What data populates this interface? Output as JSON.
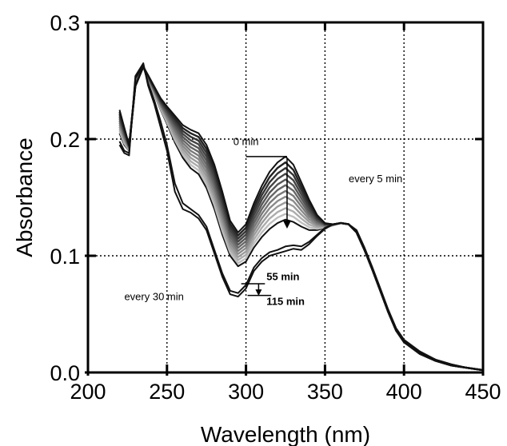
{
  "chart_data": {
    "type": "line",
    "title": "",
    "xlabel": "Wavelength (nm)",
    "ylabel": "Absorbance",
    "xlim": [
      200,
      450
    ],
    "ylim": [
      0.0,
      0.3
    ],
    "x_ticks": [
      200,
      250,
      300,
      350,
      400,
      450
    ],
    "y_ticks": [
      0.0,
      0.1,
      0.2,
      0.3
    ],
    "x_tick_labels": [
      "200",
      "250",
      "300",
      "350",
      "400",
      "450"
    ],
    "y_tick_labels": [
      "0.0",
      "0.1",
      "0.2",
      "0.3"
    ],
    "grid": true,
    "grid_style": "dotted",
    "colors": {
      "darkest": "#111111",
      "lightest": "#cfcfcf"
    },
    "annotations": [
      {
        "id": "t0",
        "text": "0 min",
        "x": 300,
        "y": 0.195
      },
      {
        "id": "every5",
        "text": "every 5 min",
        "x": 365,
        "y": 0.163
      },
      {
        "id": "t55",
        "text": "55 min",
        "x": 313,
        "y": 0.079
      },
      {
        "id": "t115",
        "text": "115 min",
        "x": 313,
        "y": 0.058
      },
      {
        "id": "every30",
        "text": "every 30 min",
        "x": 223,
        "y": 0.062
      }
    ],
    "series_groups": [
      {
        "label": "every 5 min",
        "time_min": [
          0,
          5,
          10,
          15,
          20,
          25,
          30,
          35,
          40,
          45,
          50,
          55
        ],
        "x": [
          220,
          223,
          226,
          230,
          235,
          238,
          242,
          246,
          250,
          255,
          260,
          265,
          270,
          275,
          280,
          285,
          290,
          295,
          300,
          305,
          310,
          315,
          320,
          325,
          330,
          335,
          340,
          345,
          350,
          355,
          360,
          365,
          370,
          375,
          380,
          385,
          390,
          395,
          400,
          410,
          420,
          430,
          440,
          450
        ],
        "series": [
          {
            "time_min": 0,
            "values": [
              0.225,
              0.21,
              0.195,
              0.245,
              0.262,
              0.255,
              0.245,
              0.235,
              0.228,
              0.22,
              0.212,
              0.208,
              0.205,
              0.195,
              0.178,
              0.155,
              0.13,
              0.12,
              0.127,
              0.145,
              0.16,
              0.172,
              0.18,
              0.185,
              0.178,
              0.163,
              0.148,
              0.135,
              0.128,
              0.127,
              0.128,
              0.127,
              0.12,
              0.105,
              0.088,
              0.07,
              0.052,
              0.036,
              0.026,
              0.016,
              0.01,
              0.006,
              0.004,
              0.002
            ]
          },
          {
            "time_min": 55,
            "values": [
              0.205,
              0.195,
              0.19,
              0.25,
              0.262,
              0.25,
              0.238,
              0.225,
              0.213,
              0.197,
              0.184,
              0.175,
              0.17,
              0.158,
              0.14,
              0.118,
              0.1,
              0.091,
              0.095,
              0.107,
              0.116,
              0.123,
              0.128,
              0.131,
              0.129,
              0.125,
              0.122,
              0.122,
              0.124,
              0.126,
              0.128,
              0.127,
              0.12,
              0.105,
              0.088,
              0.07,
              0.052,
              0.036,
              0.026,
              0.016,
              0.01,
              0.006,
              0.004,
              0.002
            ]
          }
        ]
      },
      {
        "label": "every 30 min",
        "time_min": [
          55,
          85,
          115
        ],
        "x": [
          220,
          223,
          226,
          230,
          235,
          238,
          242,
          246,
          250,
          255,
          260,
          265,
          270,
          275,
          280,
          285,
          290,
          295,
          300,
          305,
          310,
          315,
          320,
          325,
          330,
          335,
          340,
          345,
          350,
          355,
          360,
          365,
          370,
          375,
          380,
          385,
          390,
          395,
          400,
          410,
          420,
          430,
          440,
          450
        ],
        "series": [
          {
            "time_min": 55,
            "values": [
              0.205,
              0.195,
              0.19,
              0.25,
              0.262,
              0.25,
              0.238,
              0.225,
              0.213,
              0.197,
              0.184,
              0.175,
              0.17,
              0.158,
              0.14,
              0.118,
              0.1,
              0.091,
              0.095,
              0.107,
              0.116,
              0.123,
              0.128,
              0.131,
              0.129,
              0.125,
              0.122,
              0.122,
              0.124,
              0.126,
              0.128,
              0.127,
              0.12,
              0.105,
              0.088,
              0.07,
              0.052,
              0.036,
              0.026,
              0.016,
              0.01,
              0.006,
              0.004,
              0.002
            ]
          },
          {
            "time_min": 85,
            "values": [
              0.198,
              0.19,
              0.188,
              0.252,
              0.263,
              0.248,
              0.233,
              0.215,
              0.195,
              0.162,
              0.145,
              0.14,
              0.135,
              0.125,
              0.105,
              0.085,
              0.07,
              0.068,
              0.075,
              0.09,
              0.098,
              0.103,
              0.105,
              0.108,
              0.109,
              0.108,
              0.112,
              0.118,
              0.124,
              0.127,
              0.128,
              0.127,
              0.121,
              0.106,
              0.089,
              0.071,
              0.053,
              0.037,
              0.027,
              0.017,
              0.011,
              0.007,
              0.004,
              0.002
            ]
          },
          {
            "time_min": 115,
            "values": [
              0.195,
              0.188,
              0.186,
              0.254,
              0.265,
              0.246,
              0.23,
              0.21,
              0.19,
              0.155,
              0.14,
              0.137,
              0.132,
              0.122,
              0.102,
              0.082,
              0.067,
              0.065,
              0.072,
              0.087,
              0.095,
              0.1,
              0.102,
              0.104,
              0.106,
              0.105,
              0.11,
              0.117,
              0.123,
              0.127,
              0.128,
              0.127,
              0.122,
              0.107,
              0.09,
              0.072,
              0.054,
              0.038,
              0.028,
              0.018,
              0.011,
              0.007,
              0.004,
              0.002
            ]
          }
        ]
      }
    ]
  }
}
